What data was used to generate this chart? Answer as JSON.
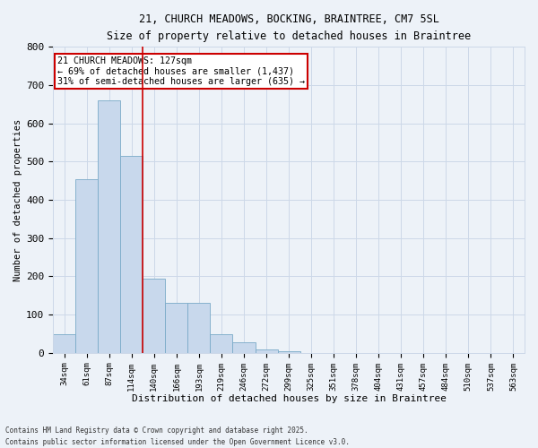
{
  "title_line1": "21, CHURCH MEADOWS, BOCKING, BRAINTREE, CM7 5SL",
  "title_line2": "Size of property relative to detached houses in Braintree",
  "xlabel": "Distribution of detached houses by size in Braintree",
  "ylabel": "Number of detached properties",
  "categories": [
    "34sqm",
    "61sqm",
    "87sqm",
    "114sqm",
    "140sqm",
    "166sqm",
    "193sqm",
    "219sqm",
    "246sqm",
    "272sqm",
    "299sqm",
    "325sqm",
    "351sqm",
    "378sqm",
    "404sqm",
    "431sqm",
    "457sqm",
    "484sqm",
    "510sqm",
    "537sqm",
    "563sqm"
  ],
  "values": [
    50,
    455,
    660,
    515,
    193,
    130,
    130,
    50,
    28,
    10,
    5,
    0,
    0,
    0,
    0,
    0,
    0,
    0,
    0,
    0,
    0
  ],
  "bar_color": "#c8d8ec",
  "bar_edge_color": "#7aaac8",
  "vline_x": 3.5,
  "vline_color": "#cc0000",
  "annotation_text": "21 CHURCH MEADOWS: 127sqm\n← 69% of detached houses are smaller (1,437)\n31% of semi-detached houses are larger (635) →",
  "annotation_box_color": "#ffffff",
  "annotation_box_edge": "#cc0000",
  "ylim": [
    0,
    800
  ],
  "yticks": [
    0,
    100,
    200,
    300,
    400,
    500,
    600,
    700,
    800
  ],
  "grid_color": "#ccd8e8",
  "background_color": "#edf2f8",
  "footer_line1": "Contains HM Land Registry data © Crown copyright and database right 2025.",
  "footer_line2": "Contains public sector information licensed under the Open Government Licence v3.0."
}
